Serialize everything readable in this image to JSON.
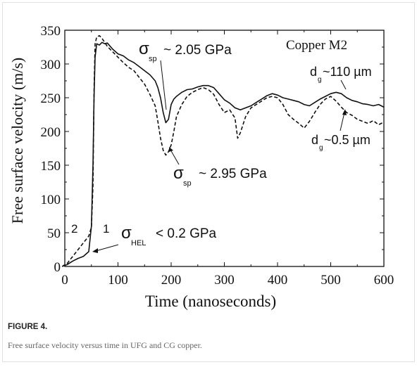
{
  "figure": {
    "label": "FIGURE 4.",
    "caption": "Free surface velocity versus time in UFG and CG copper."
  },
  "chart_data": {
    "type": "line",
    "title": "Copper M2",
    "xlabel": "Time (nanoseconds)",
    "ylabel": "Free surface velocity (m/s)",
    "xlim": [
      0,
      600
    ],
    "ylim": [
      0,
      350
    ],
    "xticks": [
      0,
      100,
      200,
      300,
      400,
      500,
      600
    ],
    "yticks": [
      0,
      50,
      100,
      150,
      200,
      250,
      300,
      350
    ],
    "grid": false,
    "series": [
      {
        "name": "d_g ~110 µm",
        "curve_number": "1",
        "style": "solid",
        "x": [
          -5,
          5,
          15,
          25,
          35,
          45,
          50,
          53,
          55,
          57,
          60,
          65,
          70,
          75,
          80,
          90,
          100,
          110,
          120,
          130,
          140,
          150,
          160,
          170,
          175,
          180,
          185,
          190,
          195,
          200,
          205,
          210,
          220,
          230,
          240,
          250,
          260,
          270,
          280,
          290,
          300,
          310,
          320,
          330,
          340,
          350,
          360,
          370,
          380,
          390,
          400,
          410,
          420,
          430,
          440,
          450,
          460,
          470,
          480,
          490,
          500,
          510,
          520,
          530,
          540,
          550,
          560,
          570,
          580,
          590,
          600
        ],
        "y": [
          0,
          3,
          8,
          12,
          15,
          22,
          60,
          150,
          250,
          310,
          330,
          328,
          332,
          330,
          331,
          322,
          315,
          312,
          306,
          302,
          296,
          290,
          284,
          275,
          265,
          250,
          228,
          213,
          218,
          240,
          248,
          252,
          258,
          262,
          263,
          266,
          268,
          268,
          265,
          256,
          247,
          242,
          235,
          232,
          235,
          238,
          243,
          248,
          253,
          256,
          254,
          250,
          248,
          246,
          244,
          240,
          238,
          243,
          248,
          252,
          256,
          258,
          256,
          250,
          246,
          244,
          241,
          240,
          238,
          240,
          236
        ]
      },
      {
        "name": "d_g ~0.5 µm",
        "curve_number": "2",
        "style": "dashed",
        "x": [
          -5,
          5,
          15,
          25,
          35,
          45,
          50,
          53,
          55,
          57,
          60,
          65,
          70,
          75,
          80,
          90,
          100,
          110,
          120,
          130,
          140,
          150,
          160,
          170,
          175,
          180,
          185,
          190,
          195,
          200,
          205,
          210,
          220,
          230,
          240,
          250,
          260,
          270,
          280,
          290,
          300,
          310,
          320,
          325,
          330,
          340,
          350,
          360,
          370,
          380,
          390,
          400,
          410,
          420,
          430,
          440,
          450,
          460,
          470,
          480,
          490,
          500,
          510,
          520,
          530,
          540,
          550,
          560,
          570,
          580,
          590,
          600
        ],
        "y": [
          0,
          5,
          15,
          25,
          35,
          45,
          58,
          120,
          260,
          330,
          340,
          342,
          338,
          332,
          326,
          318,
          310,
          302,
          295,
          290,
          280,
          270,
          255,
          238,
          215,
          190,
          172,
          165,
          170,
          180,
          200,
          222,
          240,
          252,
          258,
          262,
          265,
          262,
          255,
          240,
          228,
          232,
          220,
          190,
          198,
          222,
          235,
          240,
          245,
          250,
          252,
          250,
          240,
          225,
          218,
          212,
          205,
          215,
          228,
          240,
          248,
          252,
          245,
          236,
          228,
          224,
          218,
          215,
          212,
          216,
          210,
          214
        ]
      }
    ],
    "annotations": {
      "sigma_symbol": "σ",
      "sp_upper": {
        "sub": "sp",
        "text": "~ 2.05 GPa"
      },
      "sp_lower": {
        "sub": "sp",
        "text": "~ 2.95 GPa"
      },
      "hel": {
        "sub": "HEL",
        "text": "< 0.2 GPa"
      },
      "dg_coarse": {
        "base": "d",
        "sub": "g",
        "text": "~110  µm"
      },
      "dg_fine": {
        "base": "d",
        "sub": "g",
        "text": "~0.5  µm"
      },
      "curve_labels": [
        "2",
        "1"
      ]
    }
  }
}
